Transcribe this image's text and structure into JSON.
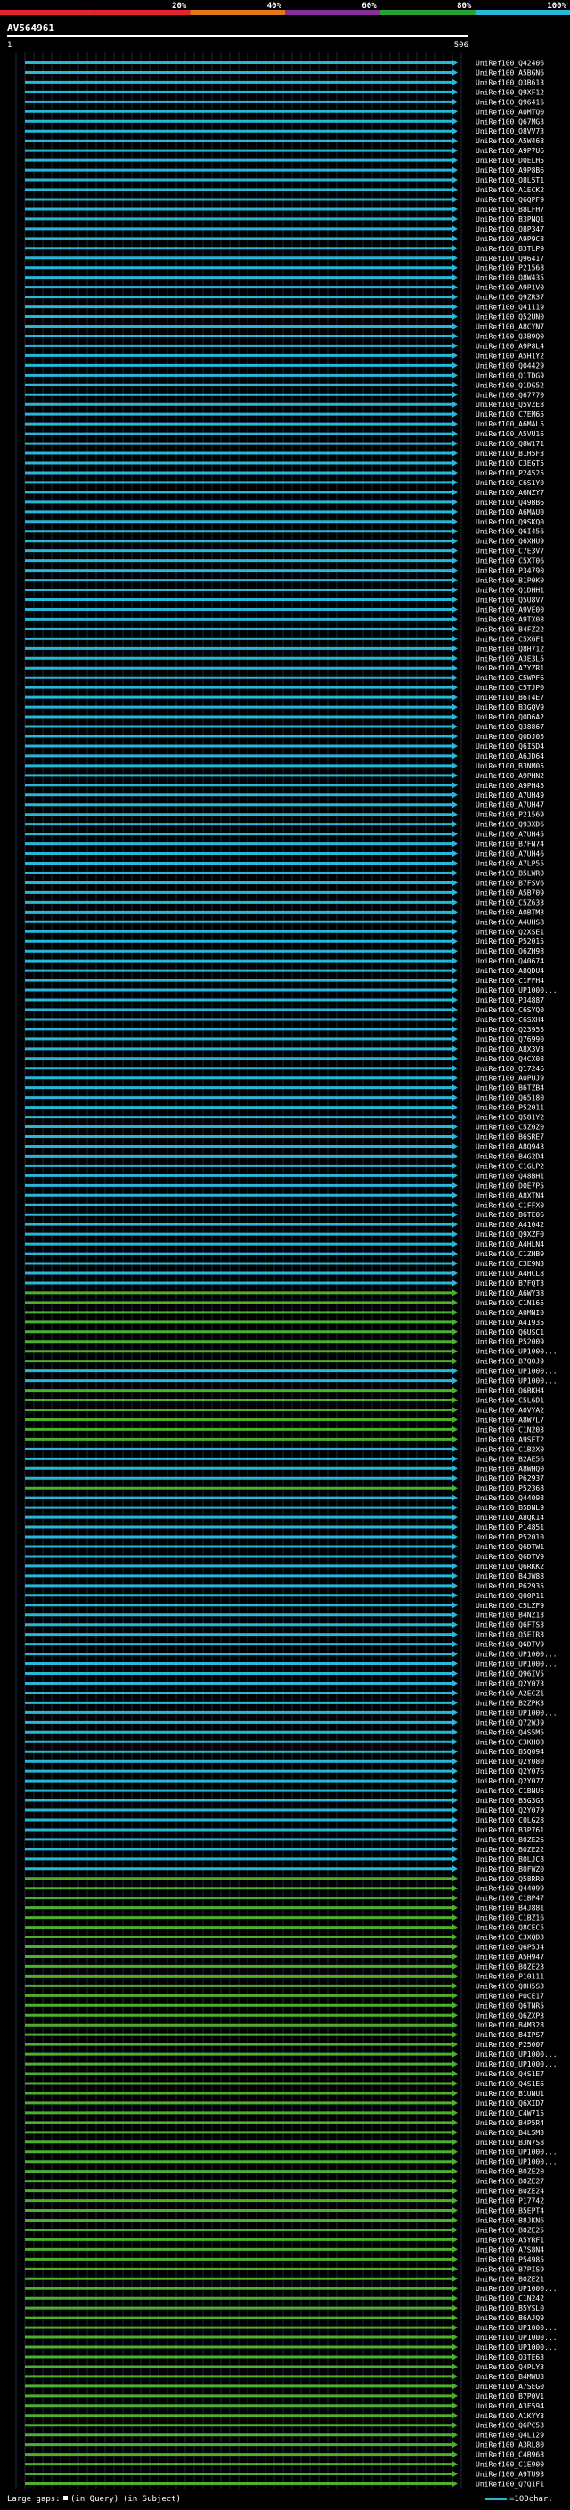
{
  "query_id": "AV564961",
  "ruler": {
    "start_label": "1",
    "end_label": "506"
  },
  "color_scale": [
    {
      "label": "",
      "color": "#e4262c"
    },
    {
      "label": "20%",
      "color": "#e4262c"
    },
    {
      "label": "40%",
      "color": "#e07a19"
    },
    {
      "label": "60%",
      "color": "#8a2b9e"
    },
    {
      "label": "80%",
      "color": "#2ca02c"
    },
    {
      "label": "100%",
      "color": "#27b7d9"
    }
  ],
  "footer": {
    "large_gaps_label": "Large gaps:",
    "in_query_label": "(in Query)",
    "in_subject_label": "(in Subject)",
    "scale_label": "=100char."
  },
  "chart_data": {
    "type": "alignment-overview",
    "query_length": 506,
    "hits": [
      {
        "id": "UniRef100_Q42406",
        "color": "cyan"
      },
      {
        "id": "UniRef100_A5BGN6",
        "color": "cyan"
      },
      {
        "id": "UniRef100_Q3B613",
        "color": "cyan"
      },
      {
        "id": "UniRef100_Q9XF12",
        "color": "cyan"
      },
      {
        "id": "UniRef100_Q96416",
        "color": "cyan"
      },
      {
        "id": "UniRef100_A0MTQ0",
        "color": "cyan"
      },
      {
        "id": "UniRef100_Q67MG3",
        "color": "cyan"
      },
      {
        "id": "UniRef100_Q8VV73",
        "color": "cyan"
      },
      {
        "id": "UniRef100_A5W468",
        "color": "cyan"
      },
      {
        "id": "UniRef100_A9P7U6",
        "color": "cyan"
      },
      {
        "id": "UniRef100_D0ELH5",
        "color": "cyan"
      },
      {
        "id": "UniRef100_A9P8B6",
        "color": "cyan"
      },
      {
        "id": "UniRef100_Q8L5T1",
        "color": "cyan"
      },
      {
        "id": "UniRef100_A1ECK2",
        "color": "cyan"
      },
      {
        "id": "UniRef100_Q6QPF9",
        "color": "cyan"
      },
      {
        "id": "UniRef100_B8LFH7",
        "color": "cyan"
      },
      {
        "id": "UniRef100_B3PNQ1",
        "color": "cyan"
      },
      {
        "id": "UniRef100_Q8P347",
        "color": "cyan"
      },
      {
        "id": "UniRef100_A9P9C8",
        "color": "cyan"
      },
      {
        "id": "UniRef100_B3TLP9",
        "color": "cyan"
      },
      {
        "id": "UniRef100_Q96417",
        "color": "cyan"
      },
      {
        "id": "UniRef100_P21568",
        "color": "cyan"
      },
      {
        "id": "UniRef100_Q8W435",
        "color": "cyan"
      },
      {
        "id": "UniRef100_A9P1V0",
        "color": "cyan"
      },
      {
        "id": "UniRef100_Q9ZR37",
        "color": "cyan"
      },
      {
        "id": "UniRef100_Q41119",
        "color": "cyan"
      },
      {
        "id": "UniRef100_Q52UN0",
        "color": "cyan"
      },
      {
        "id": "UniRef100_A8CYN7",
        "color": "cyan"
      },
      {
        "id": "UniRef100_Q3B9Q0",
        "color": "cyan"
      },
      {
        "id": "UniRef100_A9P8L4",
        "color": "cyan"
      },
      {
        "id": "UniRef100_A5H1Y2",
        "color": "cyan"
      },
      {
        "id": "UniRef100_Q04429",
        "color": "cyan"
      },
      {
        "id": "UniRef100_Q1TDG9",
        "color": "cyan"
      },
      {
        "id": "UniRef100_Q1DG52",
        "color": "cyan"
      },
      {
        "id": "UniRef100_Q67770",
        "color": "cyan"
      },
      {
        "id": "UniRef100_Q5VZE8",
        "color": "cyan"
      },
      {
        "id": "UniRef100_C7EM65",
        "color": "cyan"
      },
      {
        "id": "UniRef100_A6MAL5",
        "color": "cyan"
      },
      {
        "id": "UniRef100_A5VU16",
        "color": "cyan"
      },
      {
        "id": "UniRef100_Q8W171",
        "color": "cyan"
      },
      {
        "id": "UniRef100_B1H5F3",
        "color": "cyan"
      },
      {
        "id": "UniRef100_C3EGT5",
        "color": "cyan"
      },
      {
        "id": "UniRef100_P24525",
        "color": "cyan"
      },
      {
        "id": "UniRef100_C6S1Y0",
        "color": "cyan"
      },
      {
        "id": "UniRef100_A6NZY7",
        "color": "cyan"
      },
      {
        "id": "UniRef100_Q49BB6",
        "color": "cyan"
      },
      {
        "id": "UniRef100_A6MAU0",
        "color": "cyan"
      },
      {
        "id": "UniRef100_Q9SKQ0",
        "color": "cyan"
      },
      {
        "id": "UniRef100_Q6I456",
        "color": "cyan"
      },
      {
        "id": "UniRef100_Q6XHU9",
        "color": "cyan"
      },
      {
        "id": "UniRef100_C7E3V7",
        "color": "cyan"
      },
      {
        "id": "UniRef100_C5XT06",
        "color": "cyan"
      },
      {
        "id": "UniRef100_P34790",
        "color": "cyan"
      },
      {
        "id": "UniRef100_B1P0K0",
        "color": "cyan"
      },
      {
        "id": "UniRef100_Q1DHH1",
        "color": "cyan"
      },
      {
        "id": "UniRef100_Q5U8V7",
        "color": "cyan"
      },
      {
        "id": "UniRef100_A9VE00",
        "color": "cyan"
      },
      {
        "id": "UniRef100_A9TX08",
        "color": "cyan"
      },
      {
        "id": "UniRef100_B4FZ22",
        "color": "cyan"
      },
      {
        "id": "UniRef100_C5X6F1",
        "color": "cyan"
      },
      {
        "id": "UniRef100_Q8H712",
        "color": "cyan"
      },
      {
        "id": "UniRef100_A3E3L5",
        "color": "cyan"
      },
      {
        "id": "UniRef100_A7YZR1",
        "color": "cyan"
      },
      {
        "id": "UniRef100_C5WPF6",
        "color": "cyan"
      },
      {
        "id": "UniRef100_C5TJP0",
        "color": "cyan"
      },
      {
        "id": "UniRef100_B6T4E7",
        "color": "cyan"
      },
      {
        "id": "UniRef100_B3GQV9",
        "color": "cyan"
      },
      {
        "id": "UniRef100_Q0D6A2",
        "color": "cyan"
      },
      {
        "id": "UniRef100_Q38867",
        "color": "cyan"
      },
      {
        "id": "UniRef100_Q0DJ05",
        "color": "cyan"
      },
      {
        "id": "UniRef100_Q6I5D4",
        "color": "cyan"
      },
      {
        "id": "UniRef100_A6JD64",
        "color": "cyan"
      },
      {
        "id": "UniRef100_B3NM05",
        "color": "cyan"
      },
      {
        "id": "UniRef100_A9PHN2",
        "color": "cyan"
      },
      {
        "id": "UniRef100_A9PH45",
        "color": "cyan"
      },
      {
        "id": "UniRef100_A7UH49",
        "color": "cyan"
      },
      {
        "id": "UniRef100_A7UH47",
        "color": "cyan"
      },
      {
        "id": "UniRef100_P21569",
        "color": "cyan"
      },
      {
        "id": "UniRef100_Q93XD6",
        "color": "cyan"
      },
      {
        "id": "UniRef100_A7UH45",
        "color": "cyan"
      },
      {
        "id": "UniRef100_B7FN74",
        "color": "cyan"
      },
      {
        "id": "UniRef100_A7UH46",
        "color": "cyan"
      },
      {
        "id": "UniRef100_A7LP55",
        "color": "cyan"
      },
      {
        "id": "UniRef100_B5LWR0",
        "color": "cyan"
      },
      {
        "id": "UniRef100_B7FSV6",
        "color": "cyan"
      },
      {
        "id": "UniRef100_A5B709",
        "color": "cyan"
      },
      {
        "id": "UniRef100_C5Z633",
        "color": "cyan"
      },
      {
        "id": "UniRef100_A0BTM3",
        "color": "cyan"
      },
      {
        "id": "UniRef100_A4UHS8",
        "color": "cyan"
      },
      {
        "id": "UniRef100_Q2XSE1",
        "color": "cyan"
      },
      {
        "id": "UniRef100_P52015",
        "color": "cyan"
      },
      {
        "id": "UniRef100_Q6ZH98",
        "color": "cyan"
      },
      {
        "id": "UniRef100_Q40674",
        "color": "cyan"
      },
      {
        "id": "UniRef100_A8QDU4",
        "color": "cyan"
      },
      {
        "id": "UniRef100_C1FFH4",
        "color": "cyan"
      },
      {
        "id": "UniRef100_UP1000...",
        "color": "cyan"
      },
      {
        "id": "UniRef100_P34887",
        "color": "cyan"
      },
      {
        "id": "UniRef100_C6SYQ0",
        "color": "cyan"
      },
      {
        "id": "UniRef100_C6SXH4",
        "color": "cyan"
      },
      {
        "id": "UniRef100_Q23955",
        "color": "cyan"
      },
      {
        "id": "UniRef100_Q76990",
        "color": "cyan"
      },
      {
        "id": "UniRef100_A8X3V3",
        "color": "cyan"
      },
      {
        "id": "UniRef100_Q4CX08",
        "color": "cyan"
      },
      {
        "id": "UniRef100_Q17246",
        "color": "cyan"
      },
      {
        "id": "UniRef100_A0PUJ9",
        "color": "cyan"
      },
      {
        "id": "UniRef100_B6TZB4",
        "color": "cyan"
      },
      {
        "id": "UniRef100_Q65180",
        "color": "cyan"
      },
      {
        "id": "UniRef100_P52011",
        "color": "cyan"
      },
      {
        "id": "UniRef100_Q581Y2",
        "color": "cyan"
      },
      {
        "id": "UniRef100_C5Z0Z0",
        "color": "cyan"
      },
      {
        "id": "UniRef100_B6SRE7",
        "color": "cyan"
      },
      {
        "id": "UniRef100_A8Q943",
        "color": "cyan"
      },
      {
        "id": "UniRef100_B4G2D4",
        "color": "cyan"
      },
      {
        "id": "UniRef100_C1GLP2",
        "color": "cyan"
      },
      {
        "id": "UniRef100_Q48BH1",
        "color": "cyan"
      },
      {
        "id": "UniRef100_D0E7P5",
        "color": "cyan"
      },
      {
        "id": "UniRef100_A8XTN4",
        "color": "cyan"
      },
      {
        "id": "UniRef100_C1FFX0",
        "color": "cyan"
      },
      {
        "id": "UniRef100_B6TE06",
        "color": "cyan"
      },
      {
        "id": "UniRef100_A41042",
        "color": "cyan"
      },
      {
        "id": "UniRef100_Q9XZF0",
        "color": "cyan"
      },
      {
        "id": "UniRef100_A4HLN4",
        "color": "cyan"
      },
      {
        "id": "UniRef100_C1ZHB9",
        "color": "cyan"
      },
      {
        "id": "UniRef100_C3E9N3",
        "color": "cyan"
      },
      {
        "id": "UniRef100_A4HCL8",
        "color": "cyan"
      },
      {
        "id": "UniRef100_B7FQT3",
        "color": "cyan"
      },
      {
        "id": "UniRef100_A6WY38",
        "color": "green"
      },
      {
        "id": "UniRef100_C1N165",
        "color": "green"
      },
      {
        "id": "UniRef100_A0MNI0",
        "color": "green"
      },
      {
        "id": "UniRef100_A41935",
        "color": "green"
      },
      {
        "id": "UniRef100_Q6USC1",
        "color": "green"
      },
      {
        "id": "UniRef100_P52009",
        "color": "green"
      },
      {
        "id": "UniRef100_UP1000...",
        "color": "green"
      },
      {
        "id": "UniRef100_B7Q0J9",
        "color": "green"
      },
      {
        "id": "UniRef100_UP1000...",
        "color": "cyan"
      },
      {
        "id": "UniRef100_UP1000...",
        "color": "cyan"
      },
      {
        "id": "UniRef100_Q6BKH4",
        "color": "green"
      },
      {
        "id": "UniRef100_C5L6D1",
        "color": "green"
      },
      {
        "id": "UniRef100_A0VYA2",
        "color": "green"
      },
      {
        "id": "UniRef100_A8W7L7",
        "color": "green"
      },
      {
        "id": "UniRef100_C1N203",
        "color": "green"
      },
      {
        "id": "UniRef100_A9SET2",
        "color": "green"
      },
      {
        "id": "UniRef100_C1B2X0",
        "color": "cyan"
      },
      {
        "id": "UniRef100_B2AE56",
        "color": "cyan"
      },
      {
        "id": "UniRef100_A8WHQ0",
        "color": "cyan"
      },
      {
        "id": "UniRef100_P62937",
        "color": "cyan"
      },
      {
        "id": "UniRef100_P52368",
        "color": "green"
      },
      {
        "id": "UniRef100_Q44098",
        "color": "cyan"
      },
      {
        "id": "UniRef100_B5DNL9",
        "color": "cyan"
      },
      {
        "id": "UniRef100_A8QK14",
        "color": "cyan"
      },
      {
        "id": "UniRef100_P14851",
        "color": "cyan"
      },
      {
        "id": "UniRef100_P52010",
        "color": "cyan"
      },
      {
        "id": "UniRef100_Q6DTW1",
        "color": "cyan"
      },
      {
        "id": "UniRef100_Q6DTV9",
        "color": "cyan"
      },
      {
        "id": "UniRef100_Q6RKK2",
        "color": "cyan"
      },
      {
        "id": "UniRef100_B4JW88",
        "color": "cyan"
      },
      {
        "id": "UniRef100_P62935",
        "color": "cyan"
      },
      {
        "id": "UniRef100_Q00P11",
        "color": "cyan"
      },
      {
        "id": "UniRef100_C5LZF9",
        "color": "cyan"
      },
      {
        "id": "UniRef100_B4NZ13",
        "color": "cyan"
      },
      {
        "id": "UniRef100_Q6FTS3",
        "color": "cyan"
      },
      {
        "id": "UniRef100_Q5EIR3",
        "color": "cyan"
      },
      {
        "id": "UniRef100_Q6DTV9",
        "color": "cyan"
      },
      {
        "id": "UniRef100_UP1000...",
        "color": "cyan"
      },
      {
        "id": "UniRef100_UP1000...",
        "color": "cyan"
      },
      {
        "id": "UniRef100_Q96IV5",
        "color": "cyan"
      },
      {
        "id": "UniRef100_Q2Y073",
        "color": "cyan"
      },
      {
        "id": "UniRef100_A2ECZ1",
        "color": "cyan"
      },
      {
        "id": "UniRef100_B2ZPK3",
        "color": "cyan"
      },
      {
        "id": "UniRef100_UP1000...",
        "color": "cyan"
      },
      {
        "id": "UniRef100_Q72WJ9",
        "color": "cyan"
      },
      {
        "id": "UniRef100_Q4S5M5",
        "color": "cyan"
      },
      {
        "id": "UniRef100_C3KH08",
        "color": "cyan"
      },
      {
        "id": "UniRef100_B5Q094",
        "color": "cyan"
      },
      {
        "id": "UniRef100_Q2Y080",
        "color": "cyan"
      },
      {
        "id": "UniRef100_Q2Y076",
        "color": "cyan"
      },
      {
        "id": "UniRef100_Q2Y077",
        "color": "cyan"
      },
      {
        "id": "UniRef100_C1BNU6",
        "color": "cyan"
      },
      {
        "id": "UniRef100_B5G3G3",
        "color": "cyan"
      },
      {
        "id": "UniRef100_Q2Y079",
        "color": "cyan"
      },
      {
        "id": "UniRef100_C0LG28",
        "color": "cyan"
      },
      {
        "id": "UniRef100_B3P761",
        "color": "cyan"
      },
      {
        "id": "UniRef100_B0ZE26",
        "color": "cyan"
      },
      {
        "id": "UniRef100_B0ZE22",
        "color": "cyan"
      },
      {
        "id": "UniRef100_B0LJC8",
        "color": "cyan"
      },
      {
        "id": "UniRef100_B0FWZ0",
        "color": "cyan"
      },
      {
        "id": "UniRef100_Q58RR0",
        "color": "green"
      },
      {
        "id": "UniRef100_Q44099",
        "color": "green"
      },
      {
        "id": "UniRef100_C1BP47",
        "color": "green"
      },
      {
        "id": "UniRef100_B4J881",
        "color": "green"
      },
      {
        "id": "UniRef100_C1BZ16",
        "color": "green"
      },
      {
        "id": "UniRef100_Q8CEC5",
        "color": "green"
      },
      {
        "id": "UniRef100_C3XQD3",
        "color": "green"
      },
      {
        "id": "UniRef100_Q6P5J4",
        "color": "green"
      },
      {
        "id": "UniRef100_A5H947",
        "color": "green"
      },
      {
        "id": "UniRef100_B0ZE23",
        "color": "green"
      },
      {
        "id": "UniRef100_P10111",
        "color": "green"
      },
      {
        "id": "UniRef100_Q8H5S3",
        "color": "green"
      },
      {
        "id": "UniRef100_P0CE17",
        "color": "green"
      },
      {
        "id": "UniRef100_Q6TNR5",
        "color": "green"
      },
      {
        "id": "UniRef100_Q6ZXP3",
        "color": "green"
      },
      {
        "id": "UniRef100_B4M328",
        "color": "green"
      },
      {
        "id": "UniRef100_B4IPS7",
        "color": "green"
      },
      {
        "id": "UniRef100_P25007",
        "color": "green"
      },
      {
        "id": "UniRef100_UP1000...",
        "color": "green"
      },
      {
        "id": "UniRef100_UP1000...",
        "color": "green"
      },
      {
        "id": "UniRef100_Q4S1E7",
        "color": "green"
      },
      {
        "id": "UniRef100_Q4S1E6",
        "color": "green"
      },
      {
        "id": "UniRef100_B1UNU1",
        "color": "green"
      },
      {
        "id": "UniRef100_Q6XID7",
        "color": "green"
      },
      {
        "id": "UniRef100_C4W715",
        "color": "green"
      },
      {
        "id": "UniRef100_B4P5R4",
        "color": "green"
      },
      {
        "id": "UniRef100_B4L5M3",
        "color": "green"
      },
      {
        "id": "UniRef100_B3N7S8",
        "color": "green"
      },
      {
        "id": "UniRef100_UP1000...",
        "color": "green"
      },
      {
        "id": "UniRef100_UP1000...",
        "color": "green"
      },
      {
        "id": "UniRef100_B0ZE20",
        "color": "green"
      },
      {
        "id": "UniRef100_B0ZE27",
        "color": "green"
      },
      {
        "id": "UniRef100_B0ZE24",
        "color": "green"
      },
      {
        "id": "UniRef100_P17742",
        "color": "green"
      },
      {
        "id": "UniRef100_B5EPT4",
        "color": "green"
      },
      {
        "id": "UniRef100_B8JKN6",
        "color": "green"
      },
      {
        "id": "UniRef100_B0ZE25",
        "color": "green"
      },
      {
        "id": "UniRef100_A5YRF1",
        "color": "green"
      },
      {
        "id": "UniRef100_A7S8N4",
        "color": "green"
      },
      {
        "id": "UniRef100_P54985",
        "color": "green"
      },
      {
        "id": "UniRef100_B7PIS9",
        "color": "green"
      },
      {
        "id": "UniRef100_B0ZE21",
        "color": "green"
      },
      {
        "id": "UniRef100_UP1000...",
        "color": "green"
      },
      {
        "id": "UniRef100_C1N242",
        "color": "green"
      },
      {
        "id": "UniRef100_B5YSL0",
        "color": "green"
      },
      {
        "id": "UniRef100_B6AJQ9",
        "color": "green"
      },
      {
        "id": "UniRef100_UP1000...",
        "color": "green"
      },
      {
        "id": "UniRef100_UP1000...",
        "color": "green"
      },
      {
        "id": "UniRef100_UP1000...",
        "color": "green"
      },
      {
        "id": "UniRef100_Q3TE63",
        "color": "green"
      },
      {
        "id": "UniRef100_Q4PLY3",
        "color": "green"
      },
      {
        "id": "UniRef100_B4MWU3",
        "color": "green"
      },
      {
        "id": "UniRef100_A7SEG0",
        "color": "green"
      },
      {
        "id": "UniRef100_B7P0V1",
        "color": "green"
      },
      {
        "id": "UniRef100_A3F594",
        "color": "green"
      },
      {
        "id": "UniRef100_A1KYY3",
        "color": "green"
      },
      {
        "id": "UniRef100_Q6PC53",
        "color": "green"
      },
      {
        "id": "UniRef100_Q4L129",
        "color": "green"
      },
      {
        "id": "UniRef100_A3RL80",
        "color": "green"
      },
      {
        "id": "UniRef100_C4B968",
        "color": "green"
      },
      {
        "id": "UniRef100_C1E900",
        "color": "green"
      },
      {
        "id": "UniRef100_A9TU93",
        "color": "green"
      },
      {
        "id": "UniRef100_Q7Q1F1",
        "color": "green"
      }
    ]
  }
}
